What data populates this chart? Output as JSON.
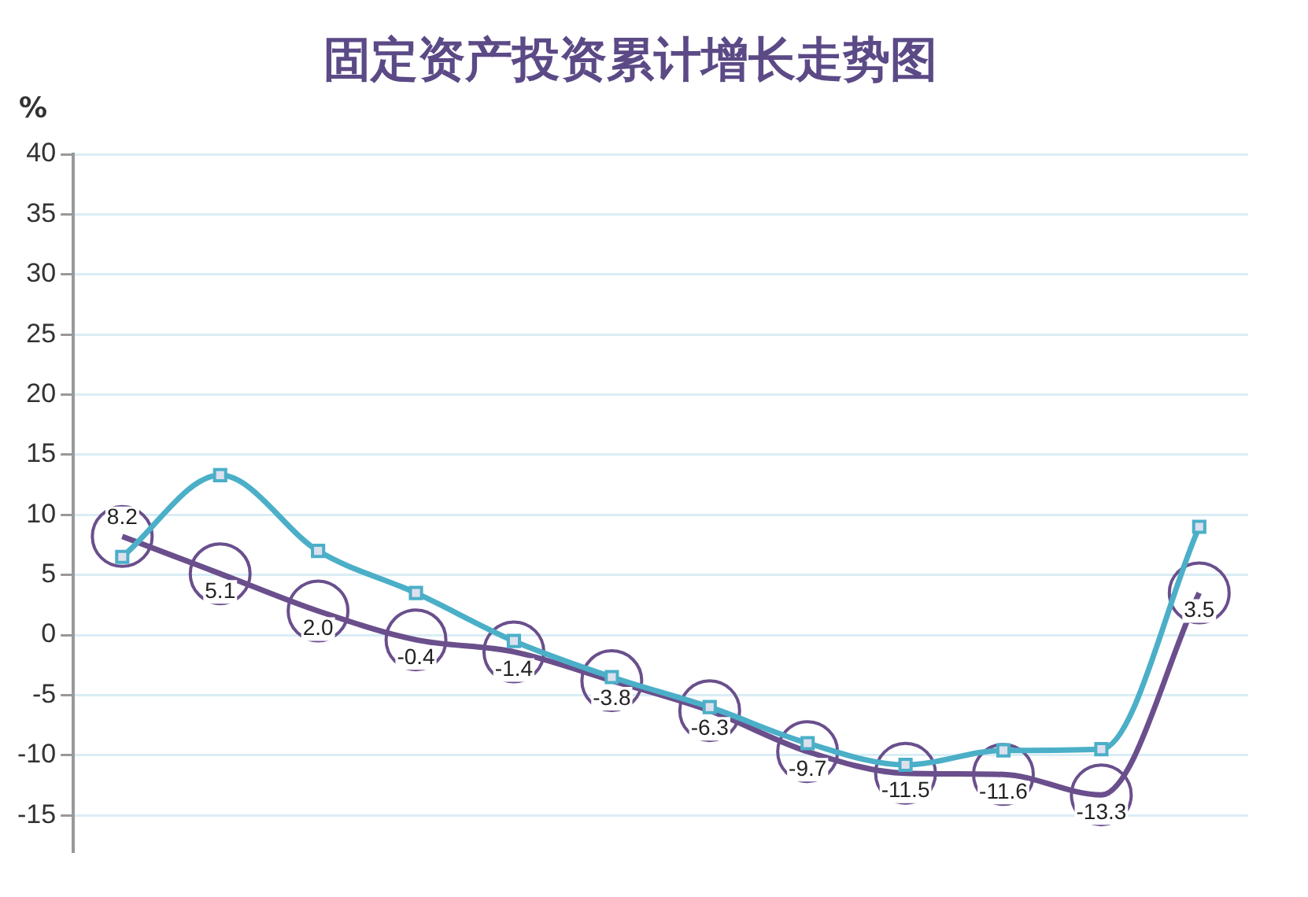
{
  "chart_data": {
    "type": "line",
    "title": "固定资产投资累计增长走势图",
    "ylabel": "%",
    "categories": [
      null,
      null,
      null,
      null,
      null,
      null,
      null,
      null,
      null,
      null,
      null,
      null
    ],
    "series": [
      {
        "color": "#6a4f8c",
        "marker": "circle",
        "values": [
          8.2,
          5.1,
          2.0,
          -0.4,
          -1.4,
          -3.8,
          -6.3,
          -9.7,
          -11.5,
          -11.6,
          -13.3,
          3.5
        ],
        "value_labels": [
          "8.2",
          "5.1",
          "2.0",
          "-0.4",
          "-1.4",
          "-3.8",
          "-6.3",
          "-9.7",
          "-11.5",
          "-11.6",
          "-13.3",
          "3.5"
        ]
      },
      {
        "color": "#4bafc8",
        "marker": "square",
        "values": [
          6.5,
          13.3,
          7.0,
          3.5,
          -0.5,
          -3.5,
          -6.0,
          -9.0,
          -10.8,
          -9.6,
          -9.5,
          9.0
        ]
      }
    ],
    "ylim": [
      -18,
      40
    ],
    "yticks": [
      -15,
      -10,
      -5,
      0,
      5,
      10,
      15,
      20,
      25,
      30,
      35,
      40
    ],
    "grid": "y",
    "legend": false,
    "tick_labels": "y"
  }
}
